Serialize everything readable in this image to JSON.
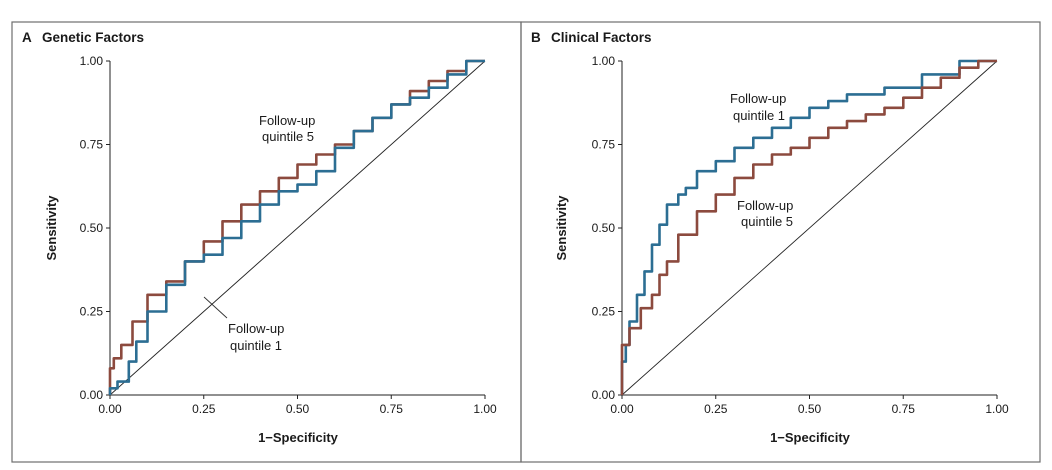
{
  "colors": {
    "brown": "#8c4a3e",
    "blue": "#2c6e93",
    "frame": "#6e6e6e"
  },
  "chart_data": [
    {
      "type": "line",
      "panel_letter": "A",
      "title": "Genetic Factors",
      "xlabel": "1−Specificity",
      "ylabel": "Sensitivity",
      "xlim": [
        0,
        1
      ],
      "ylim": [
        0,
        1
      ],
      "x_ticks": [
        "0.00",
        "0.25",
        "0.50",
        "0.75",
        "1.00"
      ],
      "y_ticks": [
        "0.00",
        "0.25",
        "0.50",
        "0.75",
        "1.00"
      ],
      "reference_line": true,
      "series": [
        {
          "name": "Follow-up quintile 5",
          "color": "#8c4a3e",
          "x": [
            0,
            0.01,
            0.03,
            0.06,
            0.1,
            0.15,
            0.2,
            0.25,
            0.3,
            0.35,
            0.4,
            0.45,
            0.5,
            0.55,
            0.6,
            0.65,
            0.7,
            0.75,
            0.8,
            0.85,
            0.9,
            0.95,
            1.0
          ],
          "y": [
            0,
            0.08,
            0.11,
            0.15,
            0.22,
            0.3,
            0.34,
            0.4,
            0.46,
            0.52,
            0.57,
            0.61,
            0.65,
            0.69,
            0.72,
            0.75,
            0.79,
            0.83,
            0.87,
            0.91,
            0.94,
            0.97,
            1.0
          ]
        },
        {
          "name": "Follow-up quintile 1",
          "color": "#2c6e93",
          "x": [
            0,
            0.02,
            0.05,
            0.07,
            0.1,
            0.15,
            0.2,
            0.25,
            0.3,
            0.35,
            0.4,
            0.45,
            0.5,
            0.55,
            0.6,
            0.65,
            0.7,
            0.75,
            0.8,
            0.85,
            0.9,
            0.95,
            1.0
          ],
          "y": [
            0,
            0.02,
            0.04,
            0.1,
            0.16,
            0.25,
            0.33,
            0.4,
            0.42,
            0.47,
            0.52,
            0.57,
            0.61,
            0.63,
            0.67,
            0.74,
            0.79,
            0.83,
            0.87,
            0.89,
            0.92,
            0.96,
            1.0
          ]
        }
      ],
      "annotations": [
        {
          "text_lines": [
            "Follow-up",
            "quintile 5"
          ],
          "series": "Follow-up quintile 5"
        },
        {
          "text_lines": [
            "Follow-up",
            "quintile 1"
          ],
          "series": "Follow-up quintile 1"
        }
      ]
    },
    {
      "type": "line",
      "panel_letter": "B",
      "title": "Clinical Factors",
      "xlabel": "1−Specificity",
      "ylabel": "Sensitivity",
      "xlim": [
        0,
        1
      ],
      "ylim": [
        0,
        1
      ],
      "x_ticks": [
        "0.00",
        "0.25",
        "0.50",
        "0.75",
        "1.00"
      ],
      "y_ticks": [
        "0.00",
        "0.25",
        "0.50",
        "0.75",
        "1.00"
      ],
      "reference_line": true,
      "series": [
        {
          "name": "Follow-up quintile 1",
          "color": "#2c6e93",
          "x": [
            0,
            0.01,
            0.02,
            0.04,
            0.06,
            0.08,
            0.1,
            0.12,
            0.15,
            0.17,
            0.2,
            0.25,
            0.3,
            0.35,
            0.4,
            0.45,
            0.5,
            0.55,
            0.6,
            0.7,
            0.8,
            0.9,
            1.0
          ],
          "y": [
            0,
            0.1,
            0.15,
            0.22,
            0.3,
            0.37,
            0.45,
            0.51,
            0.57,
            0.6,
            0.62,
            0.67,
            0.7,
            0.74,
            0.77,
            0.8,
            0.83,
            0.86,
            0.88,
            0.9,
            0.92,
            0.96,
            1.0
          ]
        },
        {
          "name": "Follow-up quintile 5",
          "color": "#8c4a3e",
          "x": [
            0,
            0.02,
            0.05,
            0.08,
            0.1,
            0.12,
            0.15,
            0.2,
            0.25,
            0.3,
            0.35,
            0.4,
            0.45,
            0.5,
            0.55,
            0.6,
            0.65,
            0.7,
            0.75,
            0.8,
            0.85,
            0.9,
            0.95,
            1.0
          ],
          "y": [
            0,
            0.15,
            0.2,
            0.26,
            0.3,
            0.36,
            0.4,
            0.48,
            0.55,
            0.6,
            0.65,
            0.69,
            0.72,
            0.74,
            0.77,
            0.8,
            0.82,
            0.84,
            0.86,
            0.89,
            0.92,
            0.95,
            0.98,
            1.0
          ]
        }
      ],
      "annotations": [
        {
          "text_lines": [
            "Follow-up",
            "quintile 1"
          ],
          "series": "Follow-up quintile 1"
        },
        {
          "text_lines": [
            "Follow-up",
            "quintile 5"
          ],
          "series": "Follow-up quintile 5"
        }
      ]
    }
  ]
}
